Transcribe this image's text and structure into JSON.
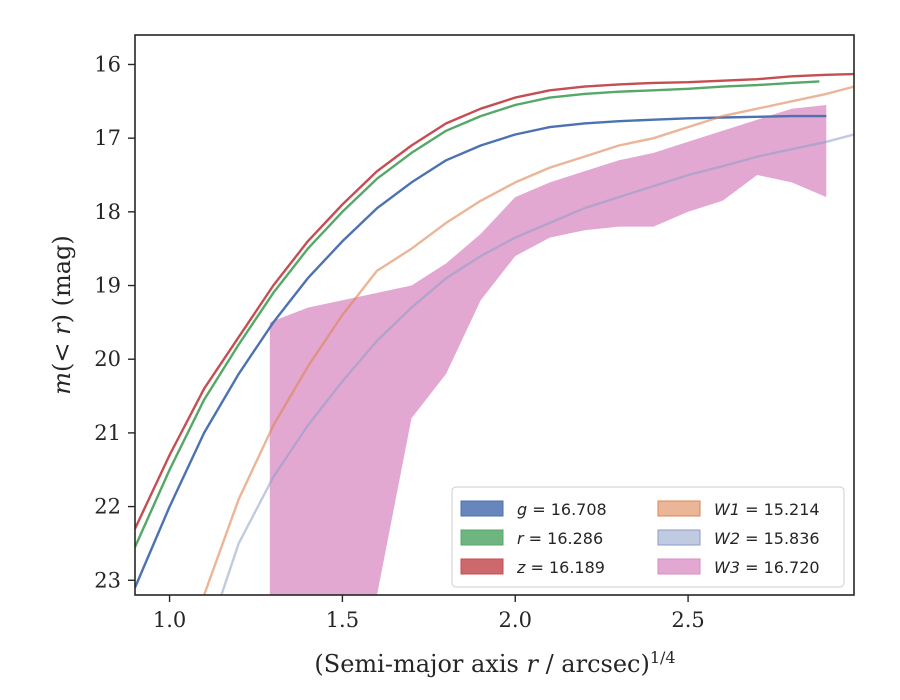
{
  "chart_data": {
    "type": "line",
    "xlabel": "(Semi-major axis r / arcsec)^1/4",
    "ylabel": "m(< r) (mag)",
    "xlim": [
      0.9,
      2.98
    ],
    "ylim": [
      23.2,
      15.6
    ],
    "y_inverted": true,
    "xticks": [
      1.0,
      1.5,
      2.0,
      2.5
    ],
    "yticks": [
      16,
      17,
      18,
      19,
      20,
      21,
      22,
      23
    ],
    "legend_position": "lower-right",
    "legend_columns": 2,
    "series": [
      {
        "name": "g = 16.708",
        "key": "g",
        "color": "#4c72b0",
        "x": [
          0.9,
          1.0,
          1.1,
          1.2,
          1.3,
          1.4,
          1.5,
          1.6,
          1.7,
          1.8,
          1.9,
          2.0,
          2.1,
          2.2,
          2.3,
          2.4,
          2.5,
          2.6,
          2.7,
          2.8,
          2.9
        ],
        "y": [
          23.1,
          22.0,
          21.0,
          20.2,
          19.5,
          18.9,
          18.4,
          17.95,
          17.6,
          17.3,
          17.1,
          16.95,
          16.85,
          16.8,
          16.77,
          16.75,
          16.73,
          16.72,
          16.71,
          16.7,
          16.7
        ]
      },
      {
        "name": "r = 16.286",
        "key": "r",
        "color": "#55a868",
        "x": [
          0.9,
          1.0,
          1.1,
          1.2,
          1.3,
          1.4,
          1.5,
          1.6,
          1.7,
          1.8,
          1.9,
          2.0,
          2.1,
          2.2,
          2.3,
          2.4,
          2.5,
          2.6,
          2.7,
          2.8,
          2.88
        ],
        "y": [
          22.55,
          21.5,
          20.55,
          19.8,
          19.1,
          18.5,
          18.0,
          17.55,
          17.2,
          16.9,
          16.7,
          16.55,
          16.45,
          16.4,
          16.37,
          16.35,
          16.33,
          16.3,
          16.28,
          16.25,
          16.23
        ]
      },
      {
        "name": "z = 16.189",
        "key": "z",
        "color": "#c44e52",
        "x": [
          0.9,
          1.0,
          1.1,
          1.2,
          1.3,
          1.4,
          1.5,
          1.6,
          1.7,
          1.8,
          1.9,
          2.0,
          2.1,
          2.2,
          2.3,
          2.4,
          2.5,
          2.6,
          2.7,
          2.8,
          2.9,
          2.98
        ],
        "y": [
          22.3,
          21.3,
          20.4,
          19.7,
          19.0,
          18.4,
          17.9,
          17.45,
          17.1,
          16.8,
          16.6,
          16.45,
          16.35,
          16.3,
          16.27,
          16.25,
          16.24,
          16.22,
          16.2,
          16.16,
          16.14,
          16.13
        ]
      },
      {
        "name": "W1 = 15.214",
        "key": "W1",
        "color": "#dd8452",
        "x": [
          1.1,
          1.2,
          1.3,
          1.4,
          1.5,
          1.6,
          1.7,
          1.8,
          1.9,
          2.0,
          2.1,
          2.2,
          2.3,
          2.4,
          2.5,
          2.6,
          2.7,
          2.8,
          2.9,
          2.98
        ],
        "y": [
          23.2,
          21.9,
          20.9,
          20.1,
          19.4,
          18.8,
          18.5,
          18.15,
          17.85,
          17.6,
          17.4,
          17.25,
          17.1,
          17.0,
          16.85,
          16.7,
          16.6,
          16.5,
          16.4,
          16.3
        ]
      },
      {
        "name": "W2 = 15.836",
        "key": "W2",
        "color": "#8c9fc6",
        "x": [
          1.15,
          1.2,
          1.3,
          1.4,
          1.5,
          1.6,
          1.7,
          1.8,
          1.9,
          2.0,
          2.1,
          2.2,
          2.3,
          2.4,
          2.5,
          2.6,
          2.7,
          2.8,
          2.9,
          2.98
        ],
        "y": [
          23.2,
          22.5,
          21.6,
          20.9,
          20.3,
          19.75,
          19.3,
          18.9,
          18.6,
          18.35,
          18.15,
          17.95,
          17.8,
          17.65,
          17.5,
          17.38,
          17.25,
          17.15,
          17.05,
          16.95
        ]
      },
      {
        "name": "W3 = 16.720",
        "key": "W3",
        "color": "#da8bc3",
        "band": true,
        "x": [
          1.29,
          1.4,
          1.5,
          1.6,
          1.7,
          1.8,
          1.9,
          2.0,
          2.1,
          2.2,
          2.3,
          2.4,
          2.5,
          2.6,
          2.7,
          2.8,
          2.9
        ],
        "y_upper": [
          19.5,
          19.3,
          19.2,
          19.1,
          19.0,
          18.7,
          18.3,
          17.8,
          17.6,
          17.45,
          17.3,
          17.2,
          17.05,
          16.9,
          16.75,
          16.6,
          16.55
        ],
        "y_lower": [
          23.2,
          23.2,
          23.2,
          23.2,
          20.8,
          20.2,
          19.2,
          18.6,
          18.35,
          18.25,
          18.2,
          18.2,
          18.0,
          17.85,
          17.5,
          17.6,
          17.8
        ]
      }
    ]
  }
}
